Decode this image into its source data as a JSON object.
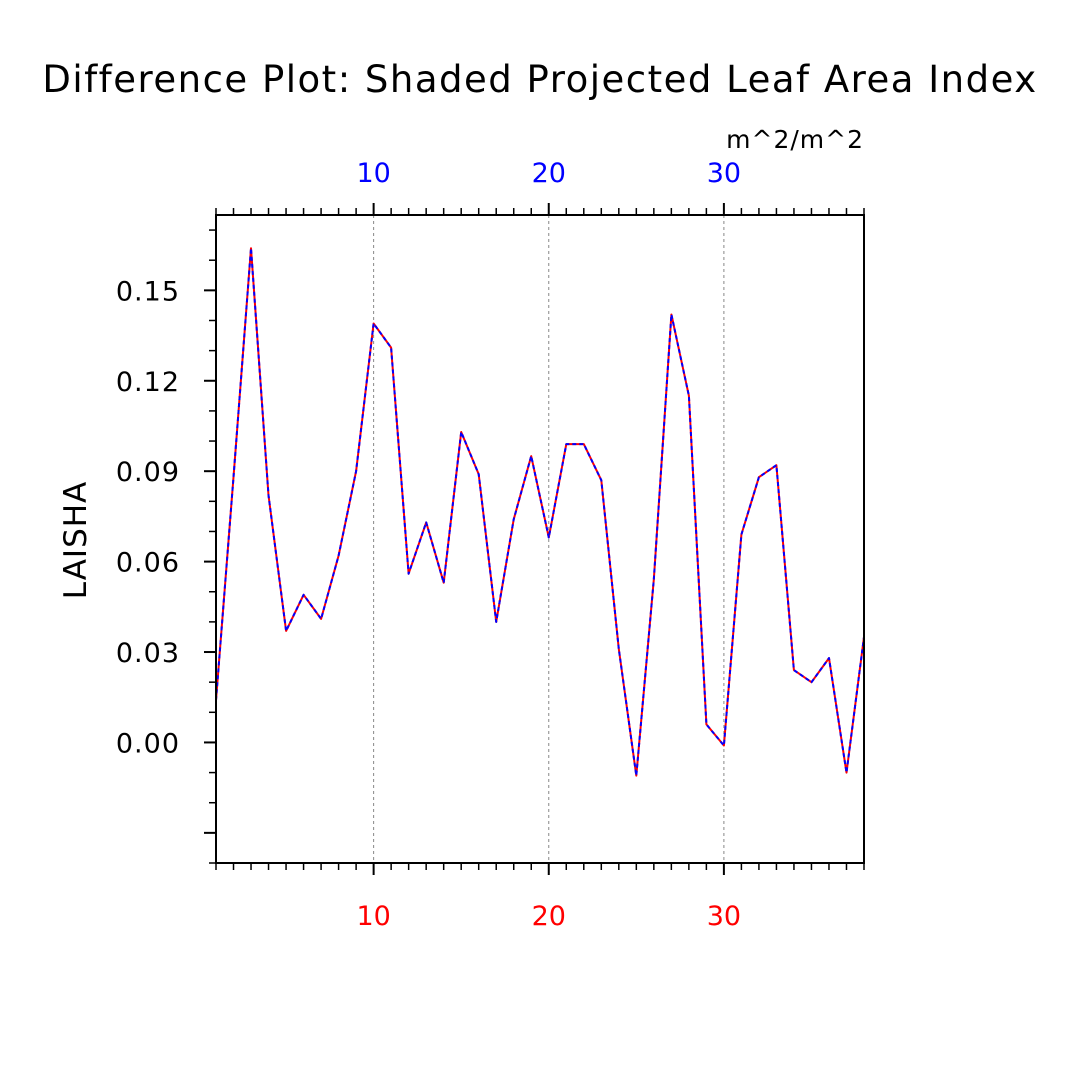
{
  "chart_data": {
    "type": "line",
    "title": "Difference Plot: Shaded Projected Leaf Area Index",
    "units": "m^2/m^2",
    "ylabel": "LAISHA",
    "xlabel": "",
    "xlim": [
      1,
      38
    ],
    "ylim": [
      -0.04,
      0.175
    ],
    "xticks_major": [
      10,
      20,
      30
    ],
    "xtick_labels": [
      "10",
      "20",
      "30"
    ],
    "yticks_major": [
      0.0,
      0.03,
      0.06,
      0.09,
      0.12,
      0.15
    ],
    "ytick_labels": [
      "0.00",
      "0.03",
      "0.06",
      "0.09",
      "0.12",
      "0.15"
    ],
    "colors": {
      "series_a": "#ff0000",
      "series_b": "#0000ff",
      "bottom_axis_labels": "#ff0000",
      "top_axis_labels": "#0000ff",
      "grid": "#888888"
    },
    "x": [
      1,
      2,
      3,
      4,
      5,
      6,
      7,
      8,
      9,
      10,
      11,
      12,
      13,
      14,
      15,
      16,
      17,
      18,
      19,
      20,
      21,
      22,
      23,
      24,
      25,
      26,
      27,
      28,
      29,
      30,
      31,
      32,
      33,
      34,
      35,
      36,
      37,
      38
    ],
    "series": [
      {
        "name": "red",
        "values": [
          0.014,
          0.088,
          0.164,
          0.082,
          0.037,
          0.049,
          0.041,
          0.062,
          0.09,
          0.139,
          0.131,
          0.056,
          0.073,
          0.053,
          0.103,
          0.089,
          0.04,
          0.074,
          0.095,
          0.068,
          0.099,
          0.099,
          0.087,
          0.031,
          -0.011,
          0.054,
          0.142,
          0.115,
          0.006,
          -0.001,
          0.069,
          0.088,
          0.092,
          0.024,
          0.02,
          0.028,
          -0.01,
          0.035
        ]
      },
      {
        "name": "blue",
        "values": [
          0.014,
          0.088,
          0.164,
          0.082,
          0.037,
          0.049,
          0.041,
          0.062,
          0.09,
          0.139,
          0.131,
          0.056,
          0.073,
          0.053,
          0.103,
          0.089,
          0.04,
          0.074,
          0.095,
          0.068,
          0.099,
          0.099,
          0.087,
          0.031,
          -0.011,
          0.054,
          0.142,
          0.115,
          0.006,
          -0.001,
          0.069,
          0.088,
          0.092,
          0.024,
          0.02,
          0.028,
          -0.01,
          0.035
        ]
      }
    ]
  }
}
